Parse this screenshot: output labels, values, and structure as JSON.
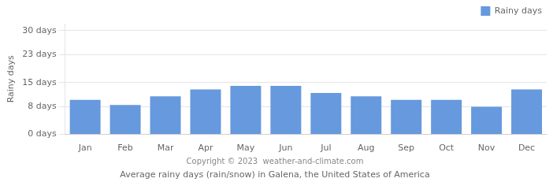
{
  "chart_data": {
    "type": "bar",
    "title": "Average rainy days (rain/snow) in Galena, the United States of America",
    "annotations": [
      "Copyright © 2023  weather-and-climate.com"
    ],
    "ylabel": "Rainy days",
    "categories": [
      "Jan",
      "Feb",
      "Mar",
      "Apr",
      "May",
      "Jun",
      "Jul",
      "Aug",
      "Sep",
      "Oct",
      "Nov",
      "Dec"
    ],
    "series": [
      {
        "name": "Rainy days",
        "color": "#6699dd",
        "values": [
          10,
          8.5,
          11,
          13,
          14,
          14,
          12,
          11,
          10,
          10,
          8,
          13
        ]
      }
    ],
    "ylim": [
      0,
      32
    ],
    "yticks": [
      {
        "value": 0,
        "label": "0 days"
      },
      {
        "value": 8,
        "label": "8 days"
      },
      {
        "value": 15,
        "label": "15 days"
      },
      {
        "value": 23,
        "label": "23 days"
      },
      {
        "value": 30,
        "label": "30 days"
      }
    ],
    "grid": true,
    "legend": "upper right"
  }
}
